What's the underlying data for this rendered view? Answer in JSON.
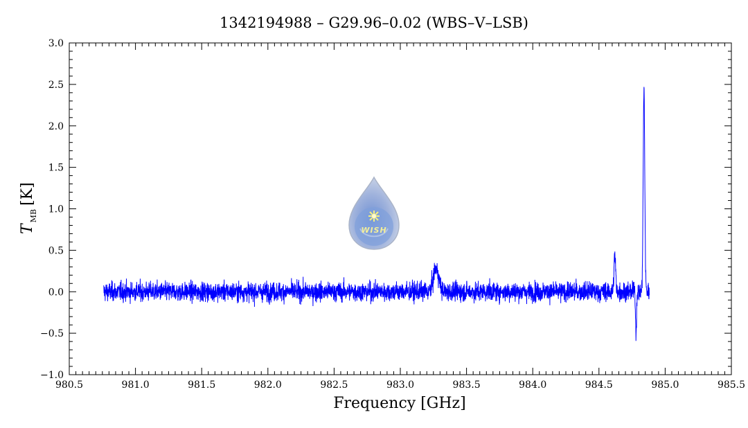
{
  "chart_data": {
    "type": "line",
    "title": "1342194988 – G29.96–0.02 (WBS–V–LSB)",
    "xlabel": "Frequency [GHz]",
    "ylabel_main": "T",
    "ylabel_sub": "MB",
    "ylabel_unit": "[K]",
    "xlim": [
      980.5,
      985.5
    ],
    "ylim": [
      -1.0,
      3.0
    ],
    "x_ticks": [
      980.5,
      981.0,
      981.5,
      982.0,
      982.5,
      983.0,
      983.5,
      984.0,
      984.5,
      985.0,
      985.5
    ],
    "x_tick_labels": [
      "980.5",
      "981.0",
      "981.5",
      "982.0",
      "982.5",
      "983.0",
      "983.5",
      "984.0",
      "984.5",
      "985.0",
      "985.5"
    ],
    "y_ticks": [
      -1.0,
      -0.5,
      0.0,
      0.5,
      1.0,
      1.5,
      2.0,
      2.5,
      3.0
    ],
    "y_tick_labels": [
      "−1.0",
      "−0.5",
      "0.0",
      "0.5",
      "1.0",
      "1.5",
      "2.0",
      "2.5",
      "3.0"
    ],
    "grid": false,
    "series": [
      {
        "color": "#0000ff",
        "x_range": [
          980.76,
          984.88
        ],
        "baseline": 0.0,
        "noise_rms": 0.09,
        "features": [
          {
            "x": 983.27,
            "peak": 0.28,
            "width": 0.02
          },
          {
            "x": 984.62,
            "peak": 0.45,
            "width": 0.006
          },
          {
            "x": 984.78,
            "peak": -0.48,
            "width": 0.004
          },
          {
            "x": 984.84,
            "peak": 2.43,
            "width": 0.006
          }
        ]
      }
    ],
    "logo_text": "WISH"
  }
}
